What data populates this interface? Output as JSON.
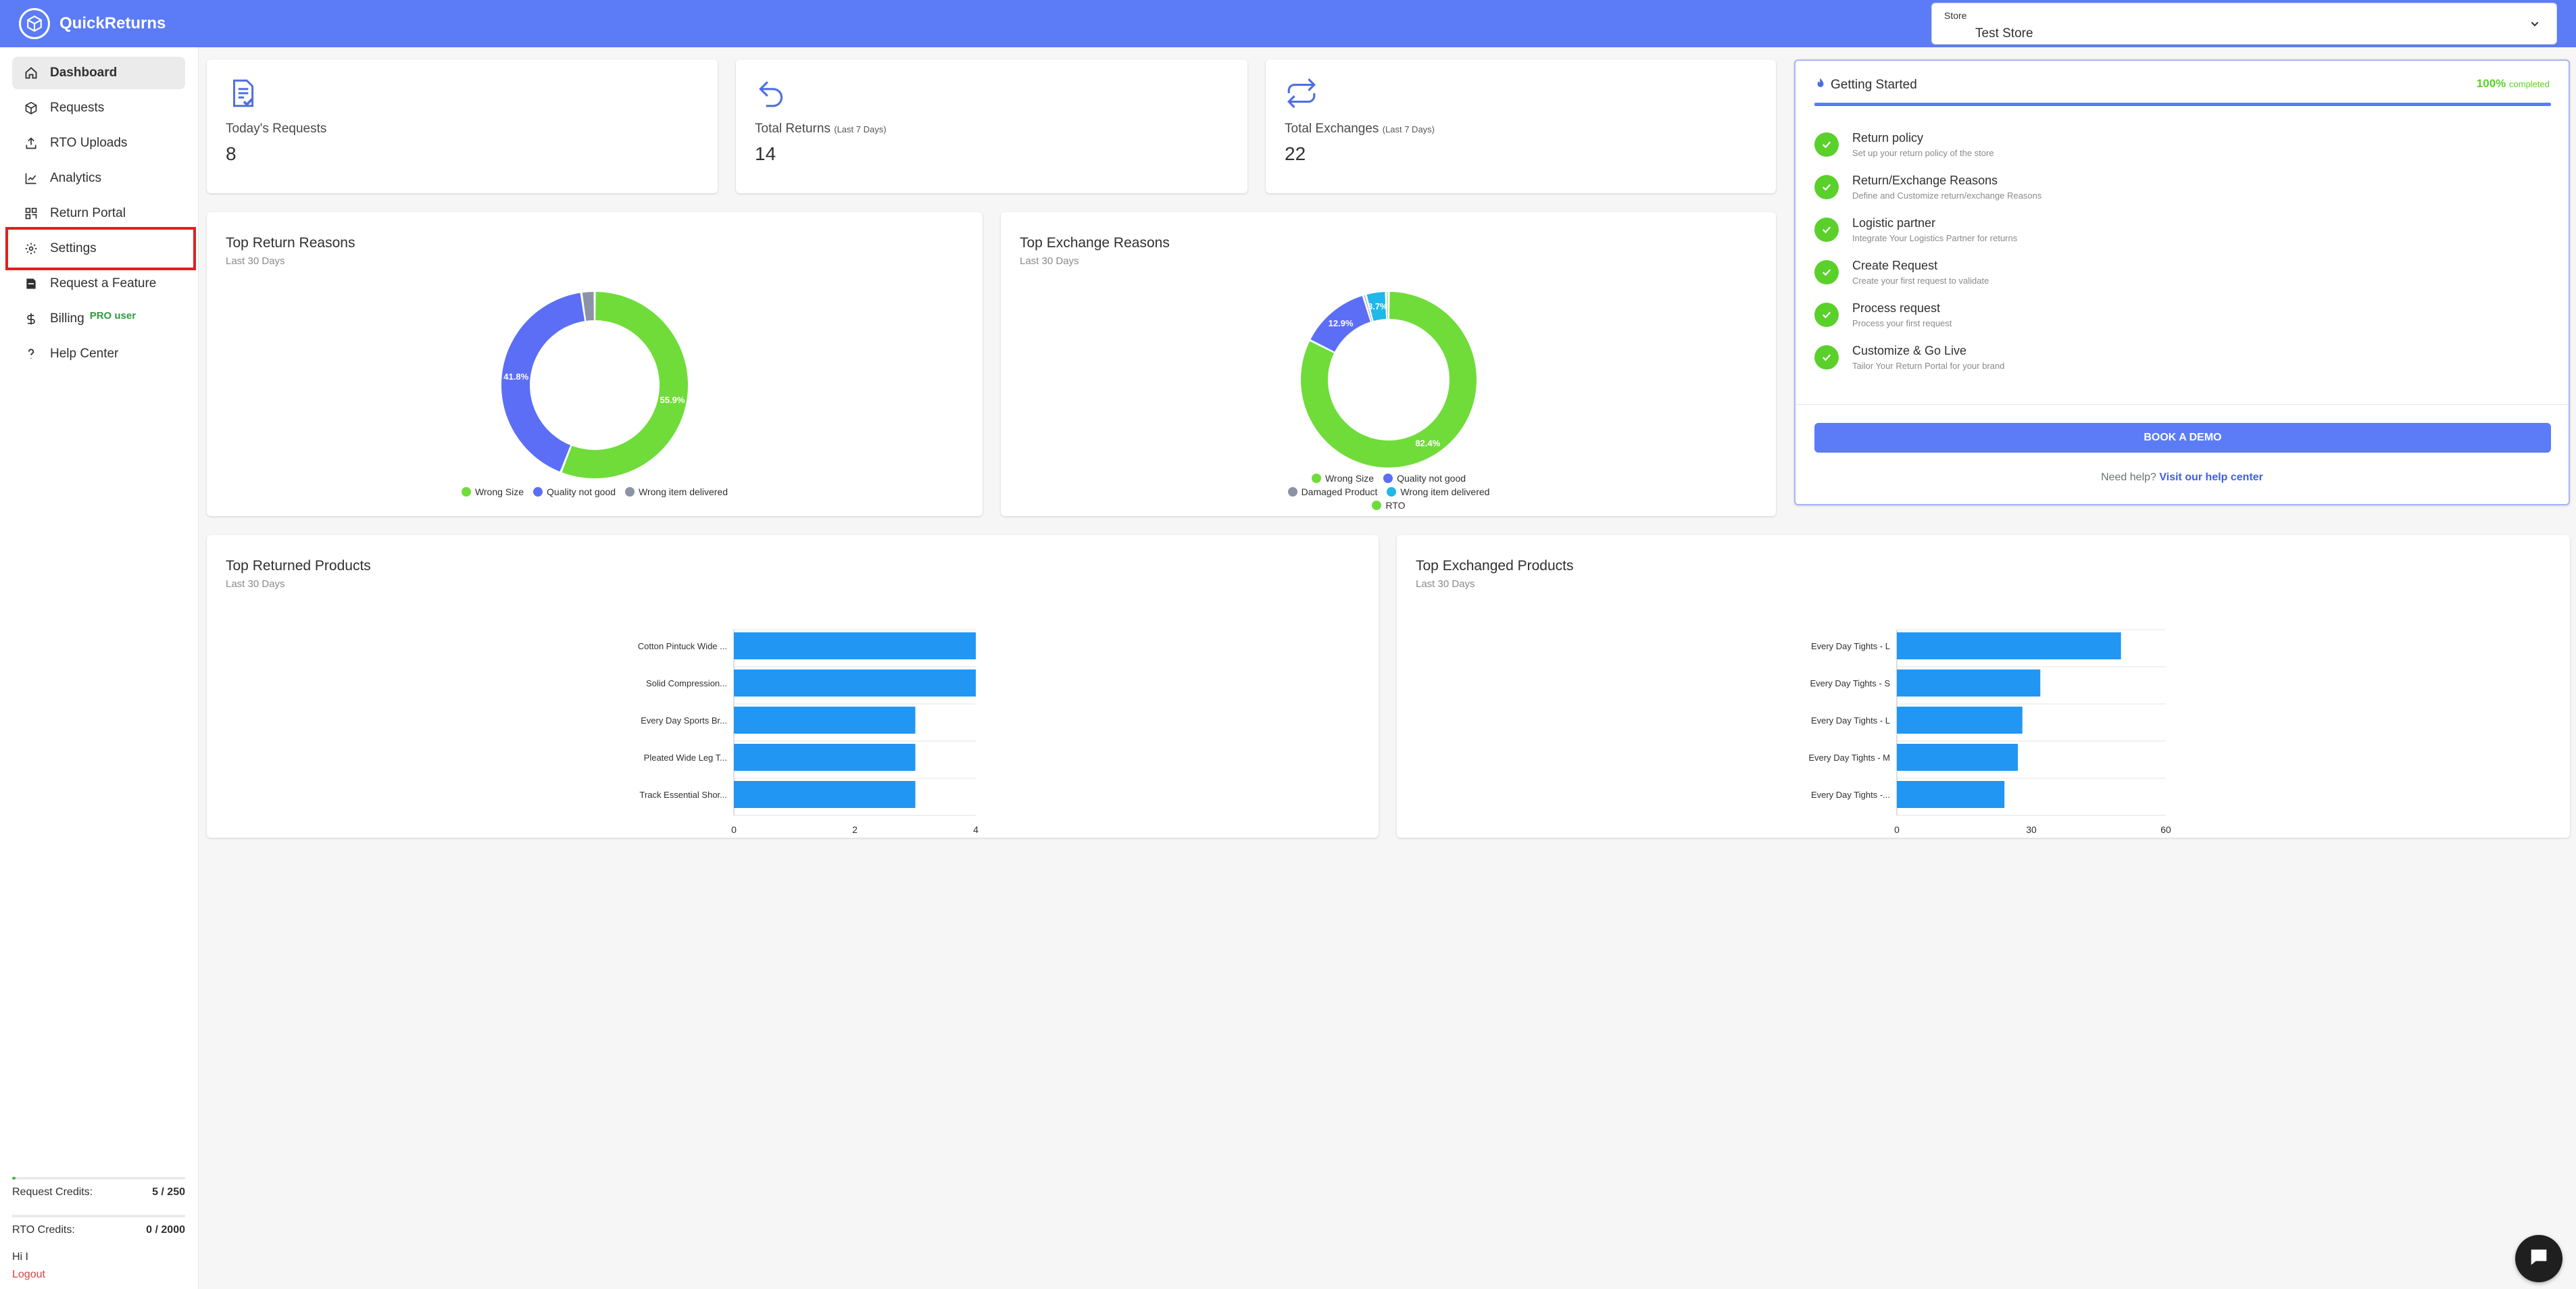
{
  "app": {
    "name": "QuickReturns"
  },
  "store": {
    "label": "Store",
    "value": "Test Store"
  },
  "sidebar": {
    "items": [
      {
        "label": "Dashboard",
        "icon": "home-icon"
      },
      {
        "label": "Requests",
        "icon": "box-icon"
      },
      {
        "label": "RTO Uploads",
        "icon": "upload-icon"
      },
      {
        "label": "Analytics",
        "icon": "chart-line-icon"
      },
      {
        "label": "Return Portal",
        "icon": "grid-icon"
      },
      {
        "label": "Settings",
        "icon": "gear-icon"
      },
      {
        "label": "Request a Feature",
        "icon": "feature-icon"
      },
      {
        "label": "Billing",
        "icon": "dollar-icon",
        "badge": "PRO user"
      },
      {
        "label": "Help Center",
        "icon": "question-icon"
      }
    ],
    "credits": [
      {
        "label": "Request Credits:",
        "value": "5 / 250",
        "used": 5,
        "total": 250
      },
      {
        "label": "RTO Credits:",
        "value": "0 / 2000",
        "used": 0,
        "total": 2000
      }
    ],
    "greeting": "Hi I",
    "logout": "Logout"
  },
  "stats": [
    {
      "label": "Today's Requests",
      "sub": "",
      "value": "8",
      "icon": "requests-doc-icon"
    },
    {
      "label": "Total Returns",
      "sub": "(Last 7 Days)",
      "value": "14",
      "icon": "return-arrow-icon"
    },
    {
      "label": "Total Exchanges",
      "sub": "(Last 7 Days)",
      "value": "22",
      "icon": "exchange-arrows-icon"
    }
  ],
  "getting_started": {
    "title": "Getting Started",
    "percent": "100%",
    "percent_label": "completed",
    "steps": [
      {
        "title": "Return policy",
        "desc": "Set up your return policy of the store"
      },
      {
        "title": "Return/Exchange Reasons",
        "desc": "Define and Customize return/exchange Reasons"
      },
      {
        "title": "Logistic partner",
        "desc": "Integrate Your Logistics Partner for returns"
      },
      {
        "title": "Create Request",
        "desc": "Create your first request to validate"
      },
      {
        "title": "Process request",
        "desc": "Process your first request"
      },
      {
        "title": "Customize & Go Live",
        "desc": "Tailor Your Return Portal for your brand"
      }
    ],
    "demo_button": "BOOK A DEMO",
    "help_text": "Need help?",
    "help_link": "Visit our help center"
  },
  "colors": {
    "primary": "#5b7cf6",
    "green": "#5ad02a",
    "bar": "#2196f3"
  },
  "chart_data": [
    {
      "type": "pie",
      "title": "Top Return Reasons",
      "subtitle": "Last 30 Days",
      "labels": [
        "Wrong Size",
        "Quality not good",
        "Wrong item delivered"
      ],
      "values": [
        55.9,
        41.8,
        2.3
      ],
      "value_labels": [
        "55.9%",
        "41.8%",
        ""
      ],
      "colors": [
        "#6fdc3a",
        "#5b6ef5",
        "#8c93a6"
      ]
    },
    {
      "type": "pie",
      "title": "Top Exchange Reasons",
      "subtitle": "Last 30 Days",
      "labels": [
        "Wrong Size",
        "Quality not good",
        "Damaged Product",
        "Wrong item delivered",
        "RTO"
      ],
      "values": [
        82.4,
        12.9,
        0.5,
        3.7,
        0.5
      ],
      "value_labels": [
        "82.4%",
        "12.9%",
        "",
        "3.7%",
        ""
      ],
      "colors": [
        "#6fdc3a",
        "#5b6ef5",
        "#8c93a6",
        "#1fb8e8",
        "#6fdc3a"
      ]
    },
    {
      "type": "bar",
      "orientation": "horizontal",
      "title": "Top Returned Products",
      "subtitle": "Last 30 Days",
      "categories": [
        "Cotton Pintuck Wide ...",
        "Solid Compression...",
        "Every Day Sports Br...",
        "Pleated Wide Leg T...",
        "Track Essential Shor..."
      ],
      "values": [
        4,
        4,
        3,
        3,
        3
      ],
      "xticks": [
        0,
        2,
        4
      ],
      "xlim": [
        0,
        4
      ]
    },
    {
      "type": "bar",
      "orientation": "horizontal",
      "title": "Top Exchanged Products",
      "subtitle": "Last 30 Days",
      "categories": [
        "Every Day Tights - L",
        "Every Day Tights - S",
        "Every Day Tights - L",
        "Every Day Tights - M",
        "Every Day Tights -..."
      ],
      "values": [
        50,
        32,
        28,
        27,
        24
      ],
      "xticks": [
        0,
        30,
        60
      ],
      "xlim": [
        0,
        60
      ]
    }
  ]
}
